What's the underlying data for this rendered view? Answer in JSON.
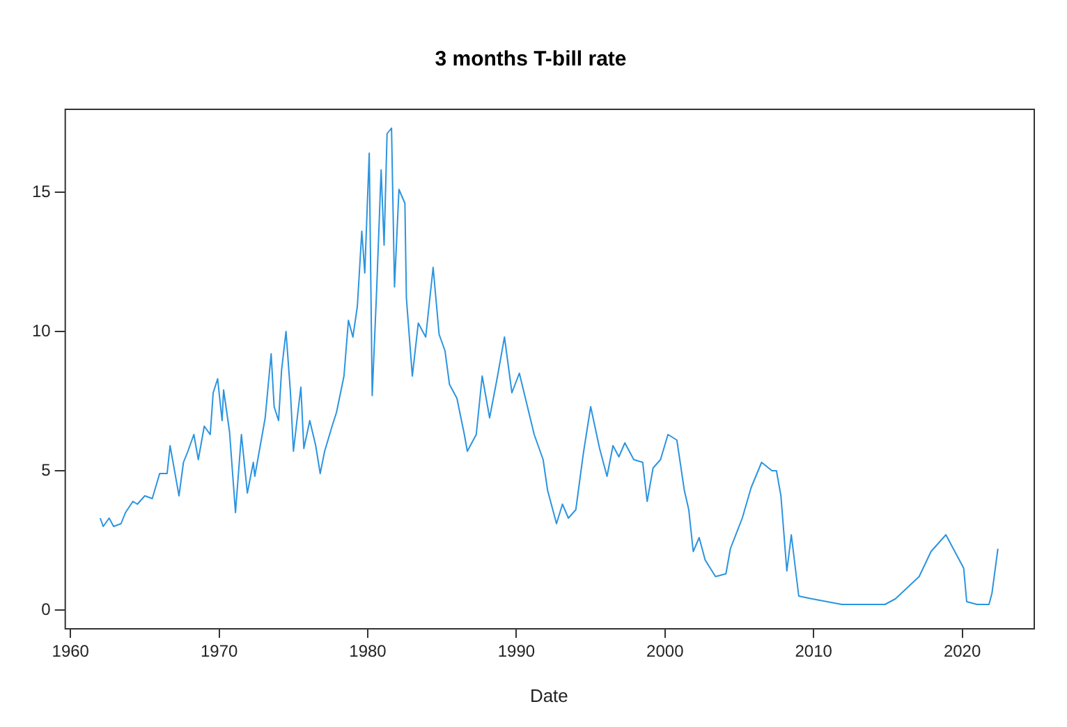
{
  "chart_data": {
    "type": "line",
    "title": "3 months T-bill rate",
    "xlabel": "Date",
    "x": [
      1962.0,
      1962.2,
      1962.6,
      1962.9,
      1963.4,
      1963.7,
      1964.2,
      1964.5,
      1965.0,
      1965.5,
      1966.0,
      1966.5,
      1966.7,
      1967.3,
      1967.6,
      1967.9,
      1968.3,
      1968.6,
      1969.0,
      1969.4,
      1969.6,
      1969.9,
      1970.2,
      1970.3,
      1970.7,
      1971.1,
      1971.5,
      1971.9,
      1972.3,
      1972.4,
      1972.7,
      1973.1,
      1973.5,
      1973.7,
      1974.0,
      1974.2,
      1974.5,
      1974.8,
      1975.0,
      1975.3,
      1975.5,
      1975.7,
      1976.1,
      1976.5,
      1976.8,
      1977.1,
      1977.6,
      1977.9,
      1978.4,
      1978.7,
      1979.0,
      1979.3,
      1979.6,
      1979.8,
      1980.1,
      1980.3,
      1980.6,
      1980.9,
      1981.1,
      1981.3,
      1981.6,
      1981.8,
      1982.1,
      1982.5,
      1982.6,
      1983.0,
      1983.4,
      1983.9,
      1984.4,
      1984.8,
      1985.2,
      1985.5,
      1986.0,
      1986.5,
      1986.7,
      1987.3,
      1987.7,
      1988.2,
      1988.7,
      1989.2,
      1989.7,
      1990.2,
      1990.7,
      1991.2,
      1991.8,
      1992.1,
      1992.7,
      1993.1,
      1993.5,
      1994.0,
      1994.5,
      1995.0,
      1995.6,
      1996.1,
      1996.5,
      1996.9,
      1997.3,
      1997.9,
      1998.5,
      1998.8,
      1999.2,
      1999.7,
      2000.2,
      2000.8,
      2001.3,
      2001.6,
      2001.9,
      2002.3,
      2002.7,
      2003.4,
      2004.1,
      2004.4,
      2005.2,
      2005.8,
      2006.5,
      2007.2,
      2007.5,
      2007.8,
      2008.2,
      2008.5,
      2009.0,
      2009.9,
      2010.9,
      2011.9,
      2013.5,
      2014.8,
      2015.5,
      2016.1,
      2017.1,
      2017.9,
      2018.9,
      2019.4,
      2020.1,
      2020.3,
      2021.0,
      2021.8,
      2022.0,
      2022.4
    ],
    "series": [
      {
        "color": "#2b94e0",
        "values": [
          3.3,
          3.0,
          3.3,
          3.0,
          3.1,
          3.5,
          3.9,
          3.8,
          4.1,
          4.0,
          4.9,
          4.9,
          5.9,
          4.1,
          5.3,
          5.7,
          6.3,
          5.4,
          6.6,
          6.3,
          7.8,
          8.3,
          6.8,
          7.9,
          6.4,
          3.5,
          6.3,
          4.2,
          5.3,
          4.8,
          5.7,
          6.9,
          9.2,
          7.3,
          6.8,
          8.6,
          10.0,
          7.8,
          5.7,
          7.1,
          8.0,
          5.8,
          6.8,
          5.9,
          4.9,
          5.7,
          6.6,
          7.1,
          8.4,
          10.4,
          9.8,
          10.9,
          13.6,
          12.1,
          16.4,
          7.7,
          11.5,
          15.8,
          13.1,
          17.1,
          17.3,
          11.6,
          15.1,
          14.6,
          11.2,
          8.4,
          10.3,
          9.8,
          12.3,
          9.9,
          9.3,
          8.1,
          7.6,
          6.3,
          5.7,
          6.3,
          8.4,
          6.9,
          8.3,
          9.8,
          7.8,
          8.5,
          7.4,
          6.3,
          5.4,
          4.3,
          3.1,
          3.8,
          3.3,
          3.6,
          5.6,
          7.3,
          5.8,
          4.8,
          5.9,
          5.5,
          6.0,
          5.4,
          5.3,
          3.9,
          5.1,
          5.4,
          6.3,
          6.1,
          4.3,
          3.6,
          2.1,
          2.6,
          1.8,
          1.2,
          1.3,
          2.2,
          3.3,
          4.4,
          5.3,
          5.0,
          5.0,
          4.1,
          1.4,
          2.7,
          0.5,
          0.4,
          0.3,
          0.2,
          0.2,
          0.2,
          0.4,
          0.7,
          1.2,
          2.1,
          2.7,
          2.2,
          1.5,
          0.3,
          0.2,
          0.2,
          0.6,
          2.2
        ]
      }
    ],
    "xlim": [
      1959.6,
      2024.8
    ],
    "xticks": [
      1960,
      1970,
      1980,
      1990,
      2000,
      2010,
      2020
    ],
    "ylim": [
      -0.65,
      18
    ],
    "yticks": [
      0,
      5,
      10,
      15
    ],
    "marker": "none",
    "line_style": "solid"
  }
}
